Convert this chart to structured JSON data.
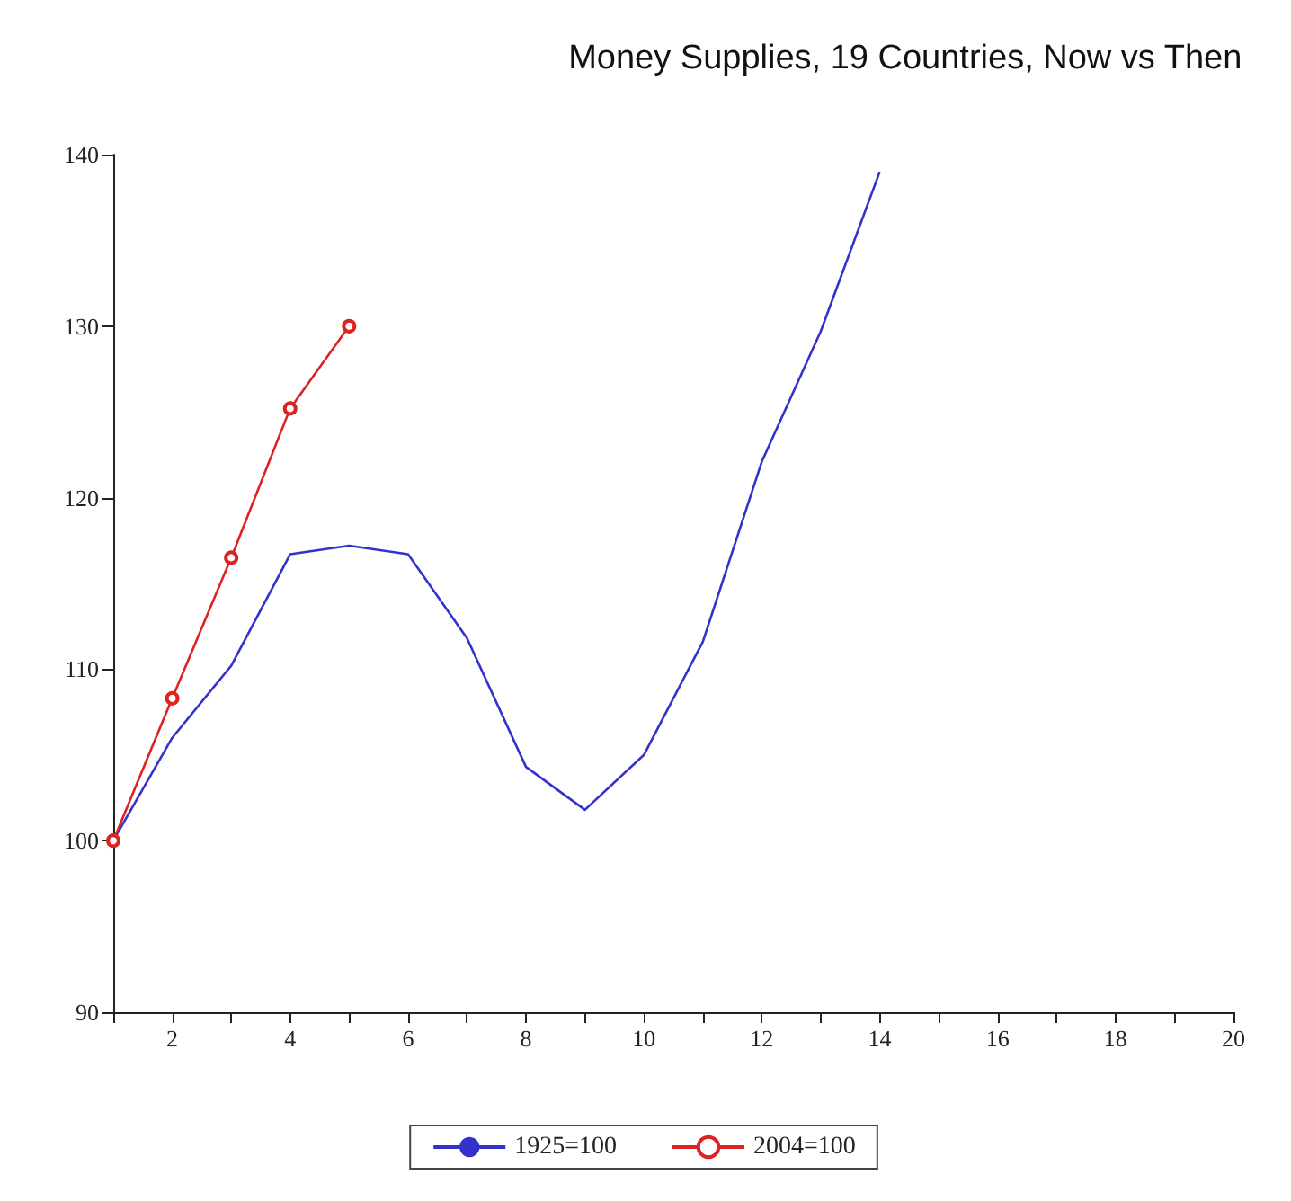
{
  "chart_data": {
    "type": "line",
    "title": "Money Supplies, 19 Countries, Now vs Then",
    "series": [
      {
        "name": "1925=100",
        "color": "#3333cc",
        "marker": "none",
        "x": [
          1,
          2,
          3,
          4,
          5,
          6,
          7,
          8,
          9,
          10,
          11,
          12,
          13,
          14
        ],
        "values": [
          100,
          106,
          110.2,
          116.7,
          117.2,
          116.7,
          111.8,
          104.3,
          101.8,
          105,
          111.6,
          122.1,
          129.7,
          139
        ]
      },
      {
        "name": "2004=100",
        "color": "#dd2222",
        "marker": "circle",
        "x": [
          1,
          2,
          3,
          4,
          5
        ],
        "values": [
          100,
          108.3,
          116.5,
          125.2,
          130
        ]
      }
    ],
    "xlim": [
      1,
      20
    ],
    "xticks": [
      {
        "value": 1,
        "label": null
      },
      2,
      {
        "value": 3,
        "label": null
      },
      4,
      {
        "value": 5,
        "label": null
      },
      6,
      {
        "value": 7,
        "label": null
      },
      8,
      {
        "value": 9,
        "label": null
      },
      10,
      {
        "value": 11,
        "label": null
      },
      12,
      {
        "value": 13,
        "label": null
      },
      14,
      {
        "value": 15,
        "label": null
      },
      16,
      {
        "value": 17,
        "label": null
      },
      18,
      {
        "value": 19,
        "label": null
      },
      20
    ],
    "ylim": [
      90,
      140
    ],
    "yticks": [
      90,
      100,
      110,
      120,
      130,
      140
    ],
    "grid": false,
    "legend": "bottom"
  }
}
